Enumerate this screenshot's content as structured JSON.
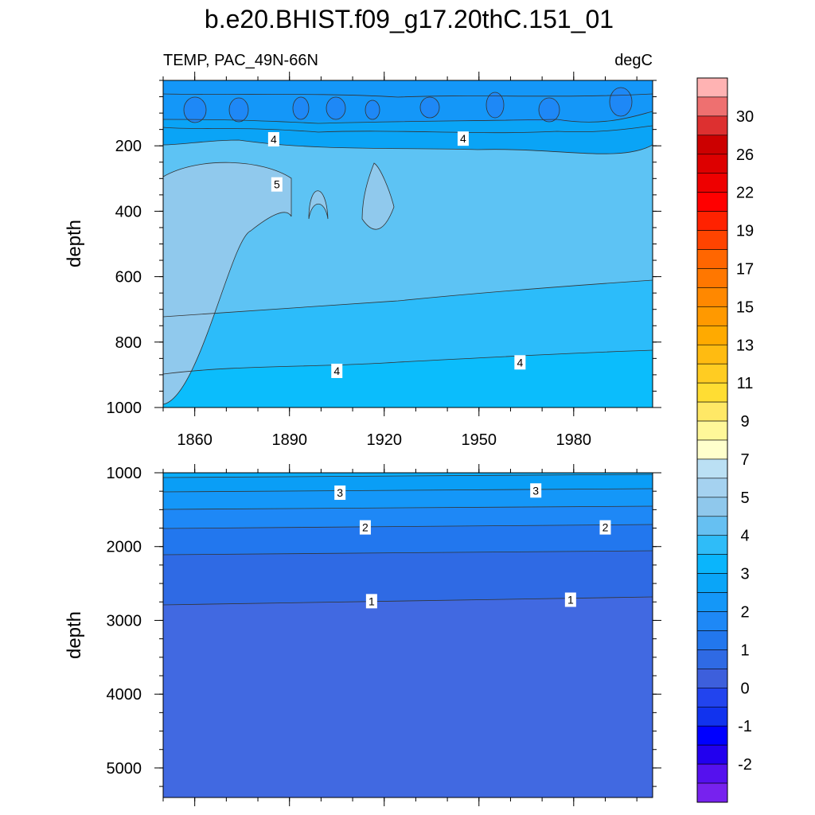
{
  "chart_data": {
    "type": "contour",
    "title": "b.e20.BHIST.f09_g17.20thC.151_01",
    "subtitle_left": "TEMP, PAC_49N-66N",
    "subtitle_right": "degC",
    "xlim": [
      1850,
      2005
    ],
    "x_ticks": [
      1860,
      1890,
      1920,
      1950,
      1980
    ],
    "panels": [
      {
        "name": "upper",
        "ylabel": "depth",
        "ylim": [
          0,
          1000
        ],
        "y_ticks": [
          200,
          400,
          600,
          800,
          1000
        ],
        "contour_labels": [
          {
            "text": "4",
            "x": 1885,
            "y": 180
          },
          {
            "text": "4",
            "x": 1945,
            "y": 178
          },
          {
            "text": "5",
            "x": 1886,
            "y": 318
          },
          {
            "text": "4",
            "x": 1905,
            "y": 888
          },
          {
            "text": "4",
            "x": 1963,
            "y": 862
          }
        ]
      },
      {
        "name": "lower",
        "ylabel": "depth",
        "ylim": [
          1000,
          5400
        ],
        "y_ticks": [
          1000,
          2000,
          3000,
          4000,
          5000
        ],
        "contour_labels": [
          {
            "text": "3",
            "x": 1906,
            "y": 1270
          },
          {
            "text": "3",
            "x": 1968,
            "y": 1240
          },
          {
            "text": "2",
            "x": 1914,
            "y": 1740
          },
          {
            "text": "2",
            "x": 1990,
            "y": 1740
          },
          {
            "text": "1",
            "x": 1916,
            "y": 2740
          },
          {
            "text": "1",
            "x": 1979,
            "y": 2720
          }
        ]
      }
    ],
    "colorbar": {
      "labels": [
        "30",
        "26",
        "22",
        "19",
        "17",
        "15",
        "13",
        "11",
        "9",
        "7",
        "5",
        "4",
        "3",
        "2",
        "1",
        "0",
        "-1",
        "-2"
      ],
      "colors": [
        "#ffb3b3",
        "#ee7070",
        "#dd3030",
        "#cc0000",
        "#dd0000",
        "#ee0000",
        "#ff0000",
        "#ff2200",
        "#ff4400",
        "#ff6600",
        "#ff7700",
        "#ff8800",
        "#ff9900",
        "#ffaa00",
        "#ffbb11",
        "#ffcc22",
        "#ffdd33",
        "#ffe866",
        "#fff799",
        "#ffffcc",
        "#bbe0f4",
        "#a5d2f0",
        "#8fc8ec",
        "#66c0f2",
        "#2fbcf8",
        "#0ab5fc",
        "#0aa5f8",
        "#1497f8",
        "#1e88f6",
        "#2277ee",
        "#2f6ae4",
        "#3d5fdc",
        "#2244ee",
        "#1133ee",
        "#0000ff",
        "#2200ee",
        "#5511ee",
        "#7722ee"
      ]
    }
  }
}
